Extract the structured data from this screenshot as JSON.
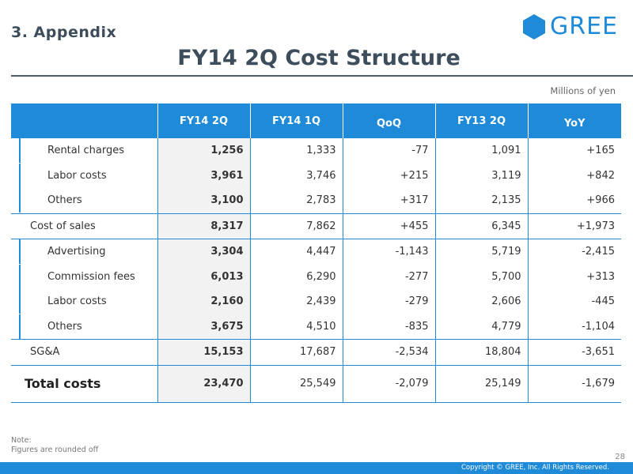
{
  "header": {
    "section": "3. Appendix",
    "logo_text": "GREE",
    "title": "FY14 2Q Cost Structure",
    "unit": "Millions of yen"
  },
  "table": {
    "columns": [
      "FY14 2Q",
      "FY14 1Q",
      "QoQ",
      "FY13 2Q",
      "YoY"
    ],
    "rows": [
      {
        "label": "Rental charges",
        "values": [
          "1,256",
          "1,333",
          "-77",
          "1,091",
          "+165"
        ]
      },
      {
        "label": "Labor costs",
        "values": [
          "3,961",
          "3,746",
          "+215",
          "3,119",
          "+842"
        ]
      },
      {
        "label": "Others",
        "values": [
          "3,100",
          "2,783",
          "+317",
          "2,135",
          "+966"
        ]
      },
      {
        "label": "Cost of sales",
        "values": [
          "8,317",
          "7,862",
          "+455",
          "6,345",
          "+1,973"
        ]
      },
      {
        "label": "Advertising",
        "values": [
          "3,304",
          "4,447",
          "-1,143",
          "5,719",
          "-2,415"
        ]
      },
      {
        "label": "Commission fees",
        "values": [
          "6,013",
          "6,290",
          "-277",
          "5,700",
          "+313"
        ]
      },
      {
        "label": "Labor costs",
        "values": [
          "2,160",
          "2,439",
          "-279",
          "2,606",
          "-445"
        ]
      },
      {
        "label": "Others",
        "values": [
          "3,675",
          "4,510",
          "-835",
          "4,779",
          "-1,104"
        ]
      },
      {
        "label": "SG&A",
        "values": [
          "15,153",
          "17,687",
          "-2,534",
          "18,804",
          "-3,651"
        ]
      },
      {
        "label": "Total costs",
        "values": [
          "23,470",
          "25,549",
          "-2,079",
          "25,149",
          "-1,679"
        ]
      }
    ]
  },
  "footer": {
    "note_label": "Note:",
    "note_text": "Figures are rounded off",
    "page_number": "28",
    "copyright": "Copyright © GREE, Inc. All Rights Reserved."
  },
  "colors": {
    "accent": "#1e8ad8",
    "title": "#3d4d5c",
    "highlight": "#f2f2f2"
  }
}
